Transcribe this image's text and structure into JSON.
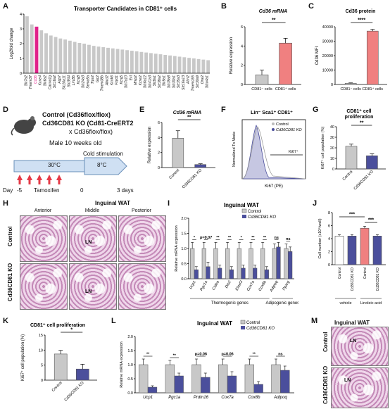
{
  "panels": {
    "A": {
      "label": "A",
      "title": "Transporter Candidates in CD81⁺ cells",
      "ylabel": "Log2fold change"
    },
    "B": {
      "label": "B",
      "title": "Cd36 mRNA",
      "ylabel": "Relative expression",
      "sig": "**"
    },
    "C": {
      "label": "C",
      "title": "Cd36 protein",
      "ylabel": "Cd36 MFI",
      "sig": "****"
    },
    "D": {
      "label": "D",
      "line1": "Control (Cd36flox/flox)",
      "line2": "Cd36CD81 KO (Cd81-CreERT2",
      "line3": "x Cd36flox/flox)",
      "line4": "Male 10 weeks old",
      "temp1": "30°C",
      "temp2": "8°C",
      "cold": "Cold stimulation",
      "day": "Day",
      "d1": "-5",
      "tam": "Tamoxifen",
      "d2": "0",
      "d3": "3 days"
    },
    "E": {
      "label": "E",
      "title": "Cd36 mRNA",
      "ylabel": "Relative expression",
      "sig": "**"
    },
    "F": {
      "label": "F",
      "title": "Lin⁻ Sca1⁺ CD81⁺",
      "ylabel": "Normalized To Mode",
      "xlabel": "Ki67 (PE)",
      "gate": "Ki67⁺",
      "leg_ctrl": "Control",
      "leg_ko": "Cd36CD81 KO"
    },
    "G": {
      "label": "G",
      "title1": "CD81⁺ cell",
      "title2": "proliferation",
      "ylabel": "Ki67⁺ cell population (%)",
      "sig": "**"
    },
    "H": {
      "label": "H",
      "title": "Inguinal WAT",
      "cols": [
        "Anterior",
        "Middle",
        "Posterior"
      ],
      "rows": [
        "Control",
        "Cd36CD81 KO"
      ],
      "ln": "LN"
    },
    "I": {
      "label": "I",
      "title": "Inguinal WAT",
      "ylabel": "Relative mRNA expression",
      "leg_ctrl": "Control",
      "leg_ko": "Cd36CD81 KO",
      "group1": "Thermogenic genes",
      "group2": "Adipogenic genes"
    },
    "J": {
      "label": "J",
      "ylabel": "Cell number (x10⁴/well)",
      "sig1": "***",
      "sig2": "***",
      "group1": "vehicle",
      "group2": "Linoleic acid"
    },
    "K": {
      "label": "K",
      "title": "CD81⁺ cell proliferation",
      "ylabel": "Ki67⁺ cell population (%)",
      "sig": "*"
    },
    "L": {
      "label": "L",
      "title": "Inguinal WAT",
      "ylabel": "Relative mRNA expression",
      "leg_ctrl": "Control",
      "leg_ko": "Cd36CD81 KO"
    },
    "M": {
      "label": "M",
      "title": "Inguinal WAT",
      "rows": [
        "Control",
        "Cd36CD81 KO"
      ],
      "ln": "LN"
    }
  },
  "colors": {
    "gray": "#c8c8c8",
    "magenta": "#e0218a",
    "salmon": "#f08080",
    "navy": "#4b4f9c",
    "white": "#ffffff",
    "arrow": "#e53946",
    "blue": "#cfe0f3"
  },
  "chart_data": [
    {
      "panel": "A",
      "type": "bar",
      "title": "Transporter Candidates in CD81⁺ cells",
      "ylabel": "Log2fold change",
      "ylim": [
        0,
        4
      ],
      "categories": [
        "Slc7a2",
        "Tmem37",
        "Cd36",
        "Kcne4",
        "Slc6a2",
        "Cacna1g",
        "Slc16a2",
        "Aqp7",
        "Slc16a11",
        "Slc35f4",
        "Lrrc8b",
        "Kcnj8",
        "Slc24a3",
        "Sema5a",
        "Trpv2",
        "Gjc2",
        "Tmem38b",
        "Abcd2",
        "Kcnk6",
        "Fxyd1",
        "Kcnj5",
        "Slc7a10",
        "Ext",
        "Mmp2",
        "Kcne2",
        "Slc6a12",
        "Slc41a3",
        "Slc8a1",
        "Slc38a2",
        "Slc9a1",
        "Slc39a8",
        "Slc30a1",
        "Slc35a3",
        "Slc16a13",
        "Atrn2",
        "Tmem165",
        "Slc30a9",
        "Orai2",
        "Slco4a1"
      ],
      "values": [
        3.85,
        3.3,
        3.15,
        2.9,
        2.7,
        2.55,
        2.45,
        2.35,
        2.28,
        2.2,
        2.12,
        2.05,
        2.0,
        1.92,
        1.85,
        1.8,
        1.76,
        1.72,
        1.68,
        1.64,
        1.6,
        1.56,
        1.52,
        1.48,
        1.44,
        1.4,
        1.36,
        1.32,
        1.28,
        1.24,
        1.2,
        1.16,
        1.12,
        1.08,
        1.04,
        1.0,
        0.96,
        0.92,
        0.88
      ],
      "highlight": "Cd36"
    },
    {
      "panel": "B",
      "type": "bar",
      "categories": [
        "CD81⁻ cells",
        "CD81⁺ cells"
      ],
      "values": [
        1.0,
        4.3
      ],
      "errors": [
        0.5,
        0.5
      ],
      "ylim": [
        0,
        6
      ],
      "yticks": [
        0,
        2,
        4,
        6
      ]
    },
    {
      "panel": "C",
      "type": "bar",
      "categories": [
        "CD81⁻ cells",
        "CD81⁺ cells"
      ],
      "values": [
        800,
        37000
      ],
      "errors": [
        300,
        1200
      ],
      "ylim": [
        0,
        40000
      ],
      "yticks": [
        0,
        10000,
        20000,
        30000,
        40000
      ]
    },
    {
      "panel": "E",
      "type": "bar",
      "categories": [
        "Control",
        "Cd36CD81 KO"
      ],
      "values": [
        3.9,
        0.4
      ],
      "errors": [
        1.0,
        0.1
      ],
      "ylim": [
        0,
        6
      ],
      "yticks": [
        0,
        2,
        4,
        6
      ]
    },
    {
      "panel": "G",
      "type": "bar",
      "categories": [
        "Control",
        "Cd36CD81 KO"
      ],
      "values": [
        21.5,
        12.5
      ],
      "errors": [
        2.0,
        1.8
      ],
      "ylim": [
        0,
        40
      ],
      "yticks": [
        0,
        10,
        20,
        30,
        40
      ]
    },
    {
      "panel": "I",
      "type": "bar",
      "categories": [
        "Ucp1",
        "Pgc1a",
        "Cidea",
        "Dio2",
        "Elovl3",
        "Cox7a",
        "Cox8b",
        "Adipoq",
        "Pparg"
      ],
      "series": [
        {
          "name": "Control",
          "values": [
            1.0,
            1.0,
            1.0,
            1.0,
            1.0,
            1.0,
            1.0,
            1.0,
            1.0
          ],
          "errors": [
            0.2,
            0.2,
            0.2,
            0.2,
            0.2,
            0.2,
            0.2,
            0.15,
            0.15
          ]
        },
        {
          "name": "Cd36CD81 KO",
          "values": [
            0.3,
            0.4,
            0.35,
            0.3,
            0.35,
            0.35,
            0.3,
            1.05,
            0.9
          ],
          "errors": [
            0.1,
            0.15,
            0.1,
            0.1,
            0.1,
            0.1,
            0.1,
            0.15,
            0.15
          ]
        }
      ],
      "sig": [
        "*",
        "p=0.07",
        "**",
        "**",
        "*",
        "**",
        "**",
        "ns",
        "ns"
      ],
      "ylim": [
        0,
        2.0
      ],
      "yticks": [
        0,
        0.5,
        1.0,
        1.5,
        2.0
      ]
    },
    {
      "panel": "J",
      "type": "bar",
      "categories": [
        "Control",
        "Cd36CD81 KO",
        "Control",
        "Cd36CD81 KO"
      ],
      "values": [
        4.4,
        4.4,
        5.6,
        4.4
      ],
      "errors": [
        0.2,
        0.2,
        0.3,
        0.2
      ],
      "ylim": [
        0,
        8
      ],
      "yticks": [
        0,
        2,
        4,
        6,
        8
      ]
    },
    {
      "panel": "K",
      "type": "bar",
      "categories": [
        "Control",
        "Cd36CD81 KO"
      ],
      "values": [
        8.7,
        3.7
      ],
      "errors": [
        1.2,
        1.6
      ],
      "ylim": [
        0,
        15
      ],
      "yticks": [
        0,
        5,
        10,
        15
      ]
    },
    {
      "panel": "L",
      "type": "bar",
      "categories": [
        "Ucp1",
        "Pgc1a",
        "Prdm16",
        "Cox7a",
        "Cox8b",
        "Adipoq"
      ],
      "series": [
        {
          "name": "Control",
          "values": [
            1.0,
            1.0,
            1.0,
            1.0,
            1.0,
            1.0
          ],
          "errors": [
            0.2,
            0.15,
            0.2,
            0.2,
            0.2,
            0.2
          ]
        },
        {
          "name": "Cd36CD81 KO",
          "values": [
            0.2,
            0.6,
            0.55,
            0.6,
            0.3,
            0.8
          ],
          "errors": [
            0.05,
            0.1,
            0.15,
            0.15,
            0.1,
            0.15
          ]
        }
      ],
      "sig": [
        "**",
        "**",
        "p=0.06",
        "p=0.06",
        "**",
        "ns"
      ],
      "ylim": [
        0,
        2.0
      ],
      "yticks": [
        0,
        0.5,
        1.0,
        1.5,
        2.0
      ]
    }
  ]
}
